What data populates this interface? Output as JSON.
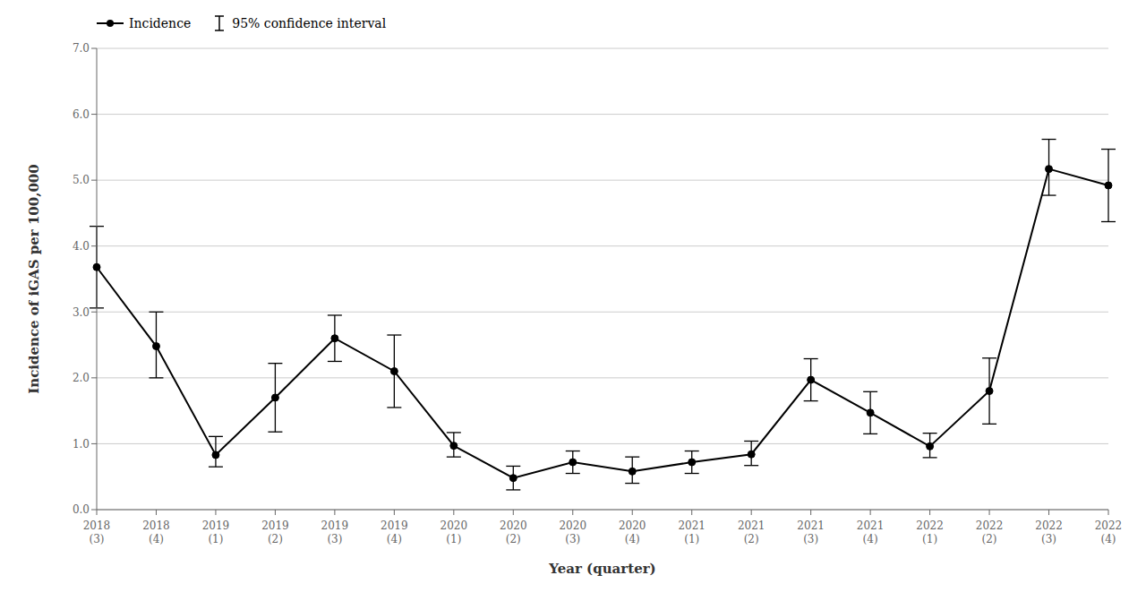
{
  "chart_data": {
    "type": "line",
    "xlabel": "Year (quarter)",
    "ylabel": "Incidence of iGAS per 100,000",
    "categories": [
      "2018\n(3)",
      "2018\n(4)",
      "2019\n(1)",
      "2019\n(2)",
      "2019\n(3)",
      "2019\n(4)",
      "2020\n(1)",
      "2020\n(2)",
      "2020\n(3)",
      "2020\n(4)",
      "2021\n(1)",
      "2021\n(2)",
      "2021\n(3)",
      "2021\n(4)",
      "2022\n(1)",
      "2022\n(2)",
      "2022\n(3)",
      "2022\n(4)"
    ],
    "series": [
      {
        "name": "Incidence",
        "color": "#000000",
        "marker": "circle",
        "values": [
          3.68,
          2.48,
          0.83,
          1.7,
          2.6,
          2.1,
          0.97,
          0.48,
          0.72,
          0.58,
          0.72,
          0.84,
          1.97,
          1.47,
          0.96,
          1.8,
          5.17,
          4.92
        ],
        "error_lower": [
          0.62,
          0.48,
          0.18,
          0.52,
          0.35,
          0.55,
          0.17,
          0.18,
          0.17,
          0.18,
          0.17,
          0.17,
          0.32,
          0.32,
          0.17,
          0.5,
          0.4,
          0.55
        ],
        "error_upper": [
          0.62,
          0.52,
          0.28,
          0.52,
          0.35,
          0.55,
          0.2,
          0.18,
          0.17,
          0.22,
          0.17,
          0.2,
          0.32,
          0.32,
          0.2,
          0.5,
          0.45,
          0.55
        ],
        "error_name": "95% confidence interval"
      }
    ],
    "ylim": [
      0.0,
      7.0
    ],
    "yticks": [
      {
        "value": 0,
        "label": "0.0"
      },
      {
        "value": 1,
        "label": "1.0"
      },
      {
        "value": 2,
        "label": "2.0"
      },
      {
        "value": 3,
        "label": "3.0"
      },
      {
        "value": 4,
        "label": "4.0"
      },
      {
        "value": 5,
        "label": "5.0"
      },
      {
        "value": 6,
        "label": "6.0"
      },
      {
        "value": 7,
        "label": "7.0"
      }
    ],
    "grid": true,
    "legend": "upper left"
  }
}
